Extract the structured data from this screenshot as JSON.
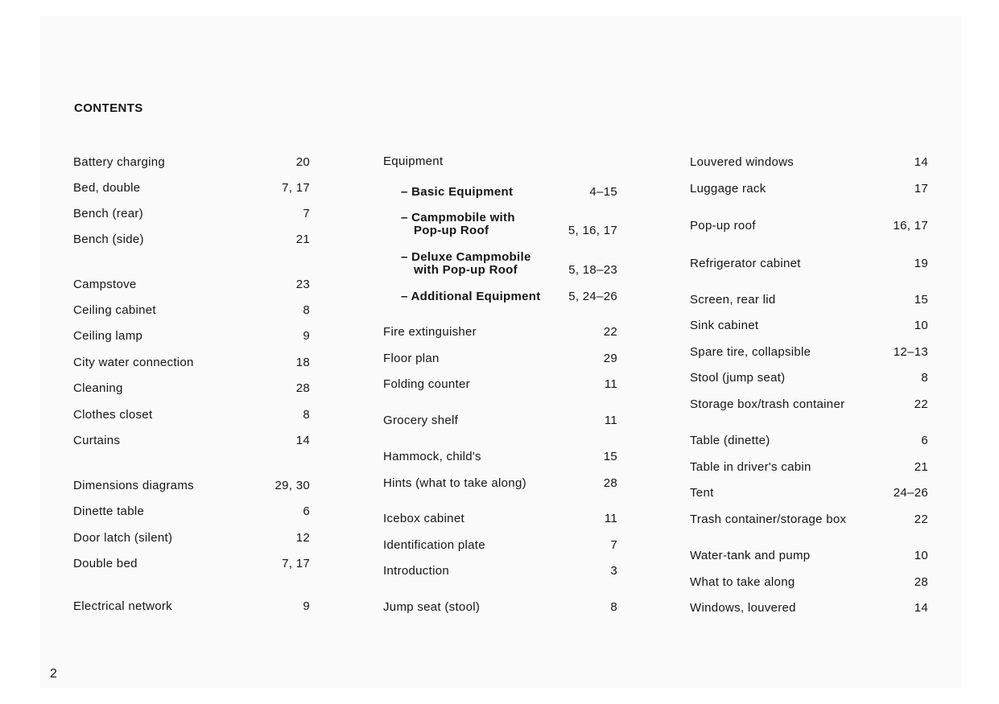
{
  "heading": "CONTENTS",
  "page_number": "2",
  "col1": [
    {
      "label": "Battery charging",
      "pages": "20"
    },
    {
      "label": "Bed, double",
      "pages": "7, 17"
    },
    {
      "label": "Bench (rear)",
      "pages": "7"
    },
    {
      "label": "Bench (side)",
      "pages": "21"
    },
    {
      "label": "Campstove",
      "pages": "23"
    },
    {
      "label": "Ceiling cabinet",
      "pages": "8"
    },
    {
      "label": "Ceiling lamp",
      "pages": "9"
    },
    {
      "label": "City water connection",
      "pages": "18"
    },
    {
      "label": "Cleaning",
      "pages": "28"
    },
    {
      "label": "Clothes closet",
      "pages": "8"
    },
    {
      "label": "Curtains",
      "pages": "14"
    },
    {
      "label": "Dimensions diagrams",
      "pages": "29, 30"
    },
    {
      "label": "Dinette table",
      "pages": "6"
    },
    {
      "label": "Door latch (silent)",
      "pages": "12"
    },
    {
      "label": "Double bed",
      "pages": "7, 17"
    },
    {
      "label": "Electrical network",
      "pages": "9"
    }
  ],
  "col2": {
    "equipment": "Equipment",
    "subs": [
      {
        "line1": "– Basic Equipment",
        "line2": "",
        "pages": "4–15"
      },
      {
        "line1": "– Campmobile with",
        "line2": "Pop-up Roof",
        "pages": "5, 16, 17"
      },
      {
        "line1": "– Deluxe Campmobile",
        "line2": "with Pop-up Roof",
        "pages": "5, 18–23"
      },
      {
        "line1": "– Additional Equipment",
        "line2": "",
        "pages": "5, 24–26"
      }
    ],
    "items": [
      {
        "label": "Fire extinguisher",
        "pages": "22"
      },
      {
        "label": "Floor plan",
        "pages": "29"
      },
      {
        "label": "Folding counter",
        "pages": "11"
      },
      {
        "label": "Grocery shelf",
        "pages": "11"
      },
      {
        "label": "Hammock, child's",
        "pages": "15"
      },
      {
        "label": "Hints (what to take along)",
        "pages": "28"
      },
      {
        "label": "Icebox cabinet",
        "pages": "11"
      },
      {
        "label": "Identification plate",
        "pages": "7"
      },
      {
        "label": "Introduction",
        "pages": "3"
      },
      {
        "label": "Jump seat (stool)",
        "pages": "8"
      }
    ]
  },
  "col3": [
    {
      "label": "Louvered windows",
      "pages": "14"
    },
    {
      "label": "Luggage rack",
      "pages": "17"
    },
    {
      "label": "Pop-up roof",
      "pages": "16, 17"
    },
    {
      "label": "Refrigerator cabinet",
      "pages": "19"
    },
    {
      "label": "Screen, rear lid",
      "pages": "15"
    },
    {
      "label": "Sink cabinet",
      "pages": "10"
    },
    {
      "label": "Spare tire, collapsible",
      "pages": "12–13"
    },
    {
      "label": "Stool (jump seat)",
      "pages": "8"
    },
    {
      "label": "Storage box/trash container",
      "pages": "22"
    },
    {
      "label": "Table (dinette)",
      "pages": "6"
    },
    {
      "label": "Table in driver's cabin",
      "pages": "21"
    },
    {
      "label": "Tent",
      "pages": "24–26"
    },
    {
      "label": "Trash container/storage box",
      "pages": "22"
    },
    {
      "label": "Water-tank and pump",
      "pages": "10"
    },
    {
      "label": "What to take along",
      "pages": "28"
    },
    {
      "label": "Windows, louvered",
      "pages": "14"
    }
  ]
}
